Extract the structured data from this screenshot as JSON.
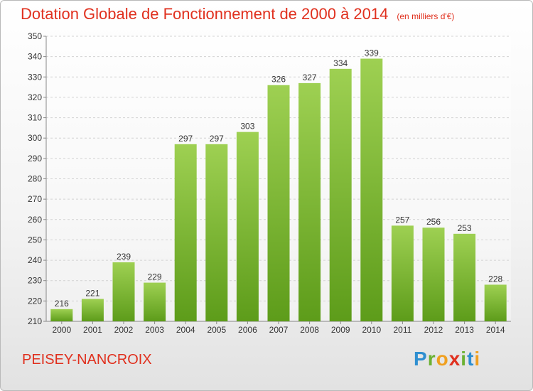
{
  "header": {
    "title": "Dotation Globale de Fonctionnement de 2000 à 2014",
    "unit": "(en milliers d'€)"
  },
  "footer": {
    "commune": "PEISEY-NANCROIX",
    "brand": "Proxiti"
  },
  "colors": {
    "accent": "#e0301e",
    "bar_top": "#9ed052",
    "bar_bottom": "#5d9c1a"
  },
  "chart_data": {
    "type": "bar",
    "title": "Dotation Globale de Fonctionnement de 2000 à 2014",
    "subtitle": "(en milliers d'€)",
    "categories": [
      "2000",
      "2001",
      "2002",
      "2003",
      "2004",
      "2005",
      "2006",
      "2007",
      "2008",
      "2009",
      "2010",
      "2011",
      "2012",
      "2013",
      "2014"
    ],
    "values": [
      216,
      221,
      239,
      229,
      297,
      297,
      303,
      326,
      327,
      334,
      339,
      257,
      256,
      253,
      228
    ],
    "ylim": [
      210,
      350
    ],
    "yticks": [
      210,
      220,
      230,
      240,
      250,
      260,
      270,
      280,
      290,
      300,
      310,
      320,
      330,
      340,
      350
    ],
    "grid": true
  }
}
